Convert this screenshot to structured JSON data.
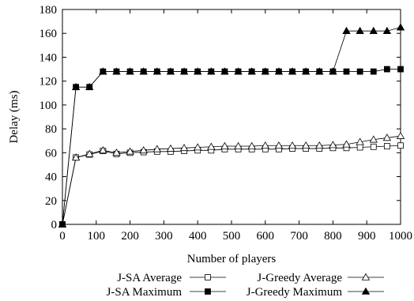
{
  "chart_data": {
    "type": "line",
    "title": "",
    "xlabel": "Number of players",
    "ylabel": "Delay (ms)",
    "xlim": [
      0,
      1000
    ],
    "ylim": [
      0,
      180
    ],
    "x_ticks": [
      "0",
      "100",
      "200",
      "300",
      "400",
      "500",
      "600",
      "700",
      "800",
      "900",
      "1000"
    ],
    "y_ticks": [
      "0",
      "20",
      "40",
      "60",
      "80",
      "100",
      "120",
      "140",
      "160",
      "180"
    ],
    "grid": false,
    "legend_position": "bottom",
    "x": [
      0,
      40,
      80,
      120,
      160,
      200,
      240,
      280,
      320,
      360,
      400,
      440,
      480,
      520,
      560,
      600,
      640,
      680,
      720,
      760,
      800,
      840,
      880,
      920,
      960,
      1000
    ],
    "series": [
      {
        "name": "J-SA Average",
        "marker": "open-square",
        "values": [
          0,
          56,
          58.5,
          61.5,
          59,
          60,
          60.5,
          61,
          61,
          61.5,
          62,
          62,
          63,
          63,
          63,
          63,
          63,
          63.5,
          63.5,
          63.5,
          64,
          64,
          64.5,
          65,
          65.5,
          66
        ]
      },
      {
        "name": "J-SA Maximum",
        "marker": "filled-square",
        "values": [
          0,
          115,
          115,
          128,
          128,
          128,
          128,
          128,
          128,
          128,
          128,
          128,
          128,
          128,
          128,
          128,
          128,
          128,
          128,
          128,
          128,
          128,
          128,
          128,
          130,
          130
        ]
      },
      {
        "name": "J-Greedy Average",
        "marker": "open-triangle",
        "values": [
          0,
          56,
          59,
          62,
          60,
          61,
          62,
          63,
          63.5,
          64,
          64.5,
          65,
          65.5,
          65.5,
          65.5,
          66,
          66,
          66,
          66,
          66,
          66.5,
          67,
          69,
          71,
          72.5,
          74
        ]
      },
      {
        "name": "J-Greedy Maximum",
        "marker": "filled-triangle",
        "values": [
          0,
          115,
          115,
          128,
          128,
          128,
          128,
          128,
          128,
          128,
          128,
          128,
          128,
          128,
          128,
          128,
          128,
          128,
          128,
          128,
          128,
          162,
          162,
          162,
          162,
          165
        ]
      }
    ]
  }
}
